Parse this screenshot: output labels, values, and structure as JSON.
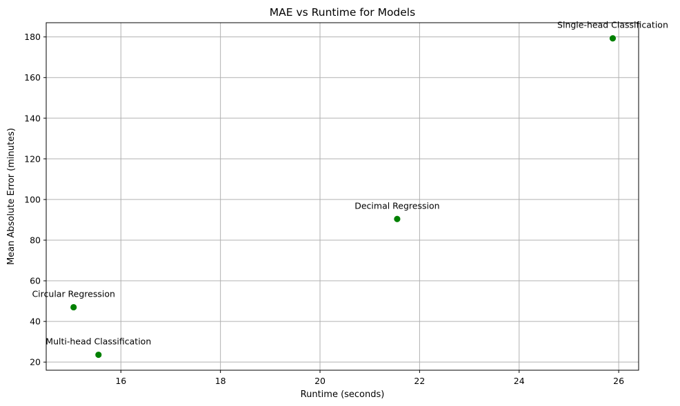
{
  "chart_data": {
    "type": "scatter",
    "title": "MAE vs Runtime for Models",
    "xlabel": "Runtime (seconds)",
    "ylabel": "Mean Absolute Error (minutes)",
    "xlim": [
      14.5,
      26.4
    ],
    "ylim": [
      16,
      187
    ],
    "xticks": [
      16,
      18,
      20,
      22,
      24,
      26
    ],
    "yticks": [
      20,
      40,
      60,
      80,
      100,
      120,
      140,
      160,
      180
    ],
    "grid": true,
    "marker_color": "#008000",
    "points": [
      {
        "label": "Circular Regression",
        "x": 15.05,
        "y": 47.0
      },
      {
        "label": "Multi-head Classification",
        "x": 15.55,
        "y": 23.6
      },
      {
        "label": "Decimal Regression",
        "x": 21.55,
        "y": 90.4
      },
      {
        "label": "Single-head Classification",
        "x": 25.88,
        "y": 179.3
      }
    ]
  }
}
